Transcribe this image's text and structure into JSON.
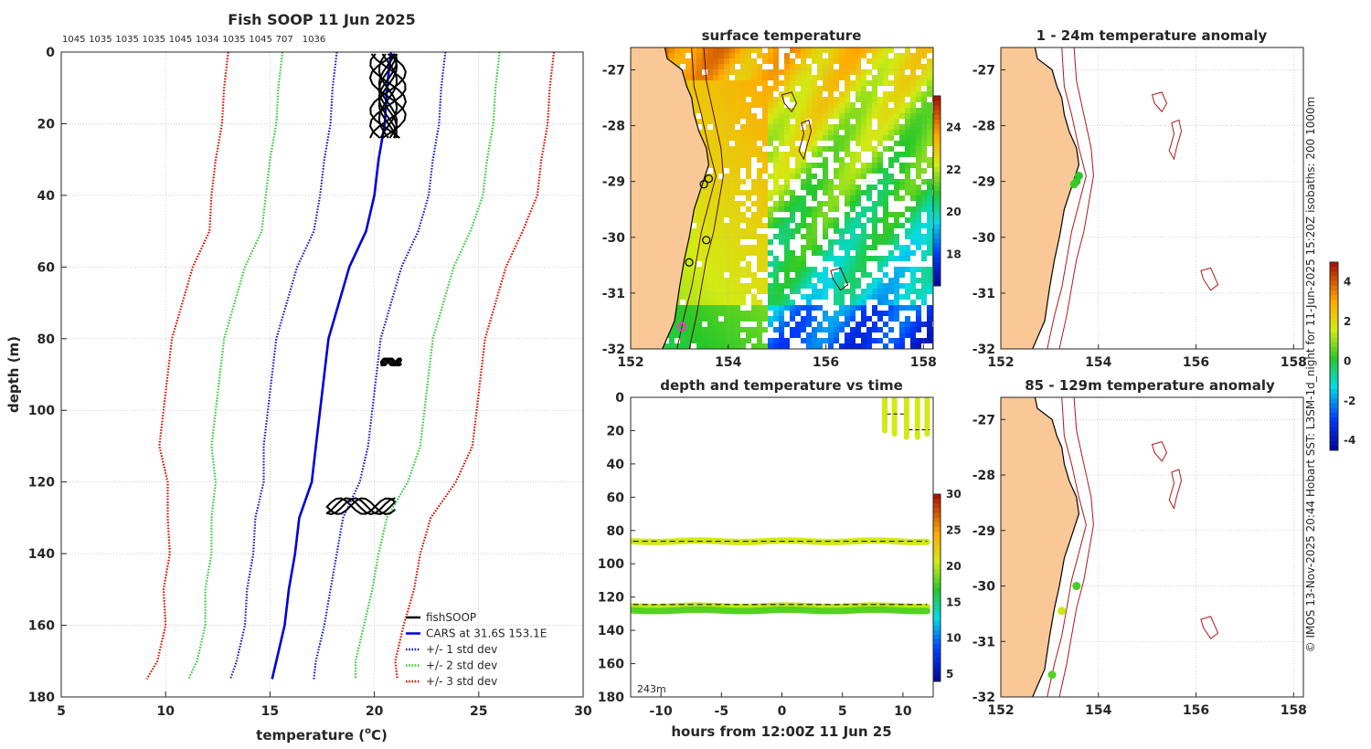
{
  "chart_data": [
    {
      "type": "line",
      "title": "Fish SOOP 11 Jun 2025",
      "xlabel_main": "temperature (",
      "xlabel_sup": "o",
      "xlabel_end": "C)",
      "ylabel": "depth (m)",
      "xlim": [
        5,
        30
      ],
      "ylim": [
        0,
        180
      ],
      "xticks": [
        5,
        10,
        15,
        20,
        25,
        30
      ],
      "yticks": [
        0,
        20,
        40,
        60,
        80,
        100,
        120,
        140,
        160,
        180
      ],
      "top_labels": [
        "1045",
        "1035",
        "1035",
        "1035",
        "1045",
        "1034",
        "1035",
        "1045",
        "707",
        "1036"
      ],
      "legend": [
        {
          "label": "fishSOOP",
          "color": "#000000",
          "style": "solid"
        },
        {
          "label": "CARS at 31.6S 153.1E",
          "color": "#0000dd",
          "style": "solid"
        },
        {
          "label": "+/- 1 std dev",
          "color": "#1a1acc",
          "style": "dotted"
        },
        {
          "label": "+/- 2 std dev",
          "color": "#33cc33",
          "style": "dotted"
        },
        {
          "label": "+/- 3 std dev",
          "color": "#dd1100",
          "style": "dotted"
        }
      ],
      "cars_depth": [
        0,
        10,
        20,
        30,
        40,
        50,
        60,
        70,
        80,
        90,
        100,
        110,
        120,
        130,
        140,
        150,
        160,
        170,
        175
      ],
      "cars_mean": [
        20.8,
        20.6,
        20.5,
        20.2,
        20.0,
        19.6,
        18.8,
        18.3,
        17.8,
        17.6,
        17.4,
        17.2,
        17.0,
        16.4,
        16.2,
        15.9,
        15.7,
        15.3,
        15.1
      ],
      "cars_std": [
        2.6,
        2.6,
        2.6,
        2.6,
        2.6,
        2.5,
        2.5,
        2.5,
        2.5,
        2.5,
        2.5,
        2.5,
        2.3,
        2.1,
        2.0,
        2.0,
        1.9,
        1.9,
        2.0
      ],
      "fish_clusters": [
        {
          "tmin": 19.7,
          "tmax": 21.6,
          "dmin": 0.5,
          "dmax": 24
        },
        {
          "tmin": 20.3,
          "tmax": 21.3,
          "dmin": 85.5,
          "dmax": 87.5
        },
        {
          "tmin": 17.7,
          "tmax": 21.0,
          "dmin": 124.5,
          "dmax": 129
        }
      ]
    },
    {
      "type": "heatmap",
      "title": "surface temperature",
      "xlim": [
        152,
        158.2
      ],
      "ylim": [
        -32,
        -26.6
      ],
      "xticks": [
        152,
        154,
        156,
        158
      ],
      "yticks": [
        -27,
        -28,
        -29,
        -30,
        -31,
        -32
      ],
      "colorbar_ticks": [
        18,
        20,
        22,
        24
      ],
      "colorbar_range": [
        16.5,
        25.5
      ],
      "points": [
        {
          "lon": 153.6,
          "lat": -28.95,
          "color": "#1faa2a"
        },
        {
          "lon": 153.5,
          "lat": -29.05,
          "color": "#1faa2a"
        },
        {
          "lon": 153.55,
          "lat": -30.05,
          "color": "#1faa2a"
        },
        {
          "lon": 153.2,
          "lat": -30.45,
          "color": "#1faa2a"
        },
        {
          "lon": 153.05,
          "lat": -31.6,
          "color": "#ff33cc"
        }
      ]
    },
    {
      "type": "scatter",
      "title": "1 - 24m temperature anomaly",
      "xlim": [
        152,
        158.2
      ],
      "ylim": [
        -32,
        -26.6
      ],
      "xticks": [
        152,
        154,
        156,
        158
      ],
      "yticks": [
        -27,
        -28,
        -29,
        -30,
        -31,
        -32
      ],
      "colorbar_ticks": [
        -4,
        -2,
        0,
        2,
        4
      ],
      "colorbar_range": [
        -4.5,
        5
      ],
      "points": [
        {
          "lon": 153.6,
          "lat": -28.9,
          "value": 0.2
        },
        {
          "lon": 153.55,
          "lat": -29.0,
          "value": 0.3
        },
        {
          "lon": 153.5,
          "lat": -29.05,
          "value": 0.4
        }
      ]
    },
    {
      "type": "scatter",
      "title": "85 - 129m temperature anomaly",
      "xlim": [
        152,
        158.2
      ],
      "ylim": [
        -32,
        -26.6
      ],
      "xticks": [
        152,
        154,
        156,
        158
      ],
      "yticks": [
        -27,
        -28,
        -29,
        -30,
        -31,
        -32
      ],
      "points": [
        {
          "lon": 153.55,
          "lat": -30.0,
          "value": 0.5
        },
        {
          "lon": 153.25,
          "lat": -30.45,
          "value": 1.6
        },
        {
          "lon": 153.05,
          "lat": -31.6,
          "value": 0.6
        }
      ]
    },
    {
      "type": "scatter",
      "title": "depth and temperature vs time",
      "xlabel": "hours from 12:00Z 11 Jun 25",
      "xlim": [
        -12.5,
        12.5
      ],
      "ylim": [
        0,
        180
      ],
      "xticks": [
        -10,
        -5,
        0,
        5,
        10
      ],
      "yticks": [
        0,
        20,
        40,
        60,
        80,
        100,
        120,
        140,
        160,
        180
      ],
      "colorbar_ticks": [
        5,
        10,
        15,
        20,
        25,
        30
      ],
      "colorbar_range": [
        4,
        30
      ],
      "depth_note": "243m",
      "dashed_depths": [
        86.5,
        124.5
      ],
      "bands": [
        {
          "depth": 86.5,
          "temp": 21.0,
          "t0": -12.3,
          "t1": 12.0
        },
        {
          "depth": 125.5,
          "temp": 20.5,
          "t0": -12.3,
          "t1": 12.0
        },
        {
          "depth": 128.0,
          "temp": 18.0,
          "t0": -12.3,
          "t1": 12.0
        }
      ],
      "shallow_casts": [
        {
          "t": 8.5,
          "dmin": 1,
          "dmax": 20,
          "temp": 21.0
        },
        {
          "t": 9.3,
          "dmin": 1,
          "dmax": 22,
          "temp": 21.0
        },
        {
          "t": 10.3,
          "dmin": 1,
          "dmax": 24,
          "temp": 21.0
        },
        {
          "t": 11.2,
          "dmin": 1,
          "dmax": 24,
          "temp": 21.0
        },
        {
          "t": 12.0,
          "dmin": 1,
          "dmax": 22,
          "temp": 21.0
        }
      ]
    }
  ],
  "side_text": "© IMOS 13-Nov-2025 20:44 Hobart SST: L3SM-1d_night for 11-Jun-2025 15:20Z isobaths: 200  1000m"
}
